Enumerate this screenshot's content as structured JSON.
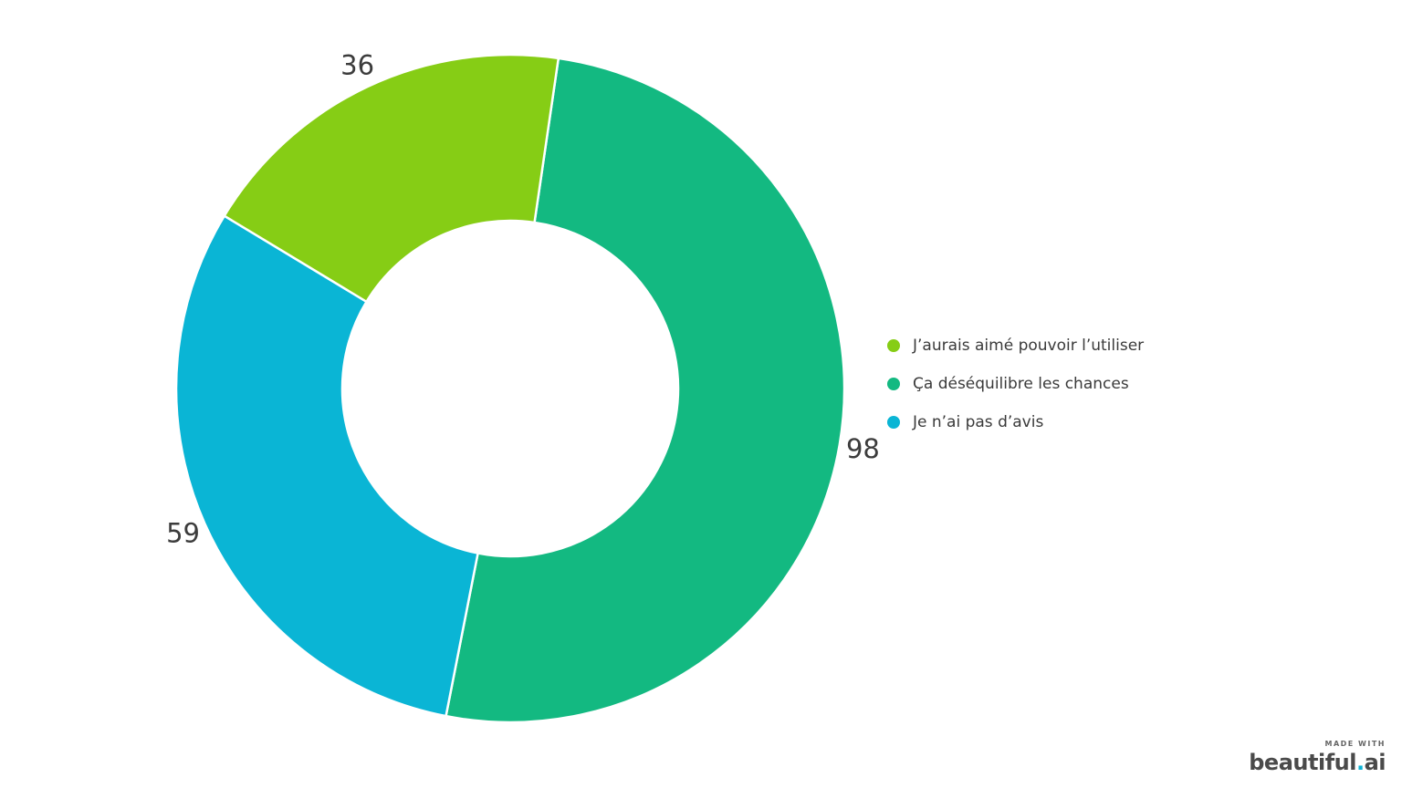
{
  "chart_data": {
    "type": "pie",
    "variant": "donut",
    "title": "",
    "slices": [
      {
        "label": "Ça déséquilibre les chances",
        "value": 98,
        "color": "#13b981"
      },
      {
        "label": "Je n’ai pas d’avis",
        "value": 59,
        "color": "#0ab5d5"
      },
      {
        "label": "J’aurais aimé pouvoir l’utiliser",
        "value": 36,
        "color": "#86cd15"
      }
    ],
    "legend": {
      "placement": "right",
      "items": [
        {
          "label": "J’aurais aimé pouvoir l’utiliser",
          "color": "#86cd15"
        },
        {
          "label": "Ça déséquilibre les chances",
          "color": "#13b981"
        },
        {
          "label": "Je n’ai pas d’avis",
          "color": "#0ab5d5"
        }
      ]
    }
  },
  "branding": {
    "made_with": "MADE WITH",
    "name": "beautiful",
    "dot": ".",
    "suffix": "ai"
  }
}
